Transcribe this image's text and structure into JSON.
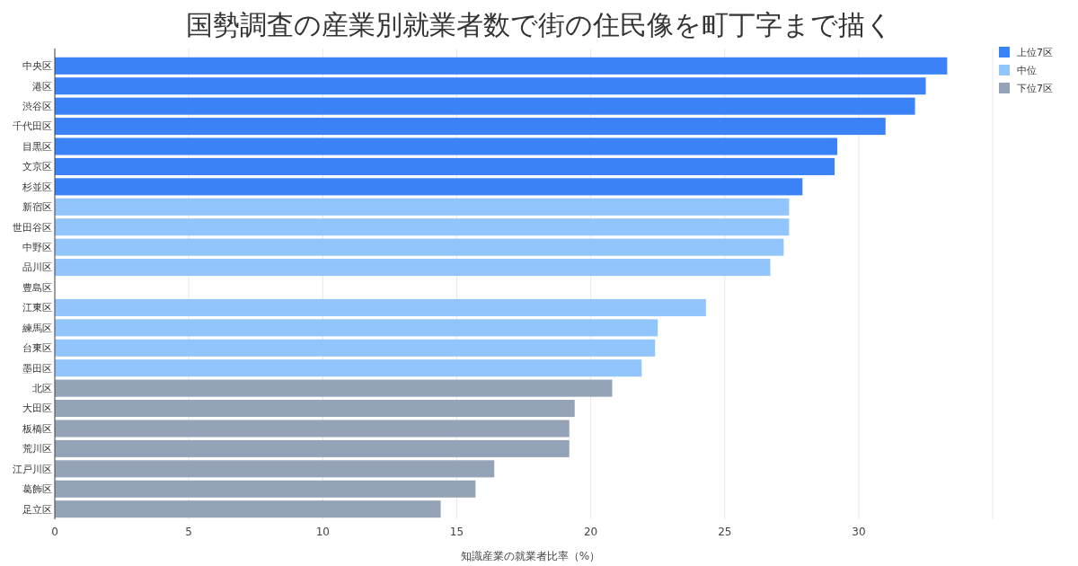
{
  "chart_data": {
    "type": "bar",
    "orientation": "horizontal",
    "title": "国勢調査の産業別就業者数で街の住民像を町丁字まで描く",
    "xlabel": "知識産業の就業者比率（%）",
    "categories": [
      "中央区",
      "港区",
      "渋谷区",
      "千代田区",
      "目黒区",
      "文京区",
      "杉並区",
      "新宿区",
      "世田谷区",
      "中野区",
      "品川区",
      "豊島区",
      "江東区",
      "練馬区",
      "台東区",
      "墨田区",
      "北区",
      "大田区",
      "板橋区",
      "荒川区",
      "江戸川区",
      "葛飾区",
      "足立区"
    ],
    "series": [
      {
        "name": "上位7区",
        "color": "#3b82f6",
        "values": [
          33.3,
          32.5,
          32.1,
          31.0,
          29.2,
          29.1,
          27.9,
          null,
          null,
          null,
          null,
          null,
          null,
          null,
          null,
          null,
          null,
          null,
          null,
          null,
          null,
          null,
          null
        ]
      },
      {
        "name": "中位",
        "color": "#93c5fd",
        "values": [
          null,
          null,
          null,
          null,
          null,
          null,
          null,
          27.4,
          27.4,
          27.2,
          26.7,
          null,
          24.3,
          22.5,
          22.4,
          21.9,
          null,
          null,
          null,
          null,
          null,
          null,
          null
        ]
      },
      {
        "name": "下位7区",
        "color": "#94a3b8",
        "values": [
          null,
          null,
          null,
          null,
          null,
          null,
          null,
          null,
          null,
          null,
          null,
          null,
          null,
          null,
          null,
          null,
          20.8,
          19.4,
          19.2,
          19.2,
          16.4,
          15.7,
          14.4
        ]
      }
    ],
    "xlim": [
      0,
      35.5
    ],
    "xticks": [
      0,
      5,
      10,
      15,
      20,
      25,
      30,
      {
        "value": 35,
        "label": null
      }
    ],
    "grid": "x",
    "legend": "top right"
  }
}
